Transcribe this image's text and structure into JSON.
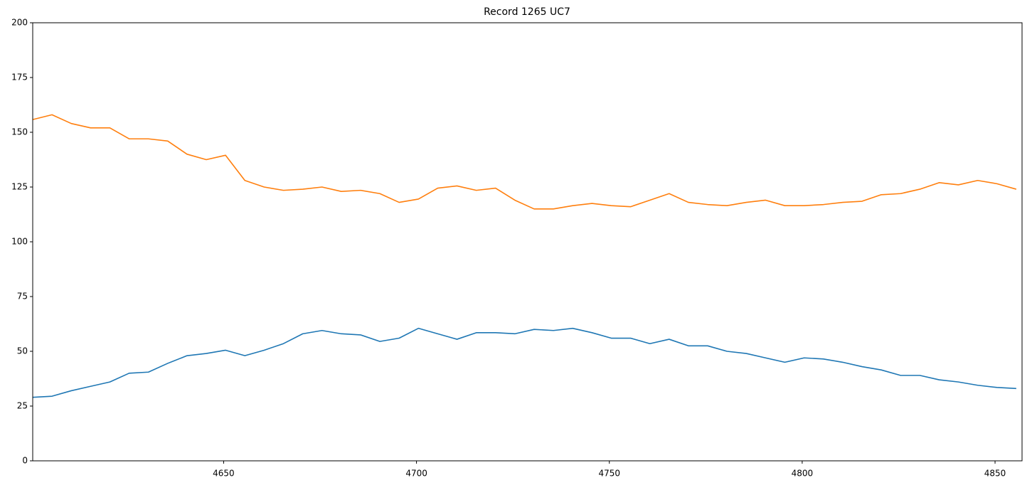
{
  "chart_data": {
    "type": "line",
    "title": "Record 1265 UC7",
    "x": [
      4600.5,
      4605.5,
      4610.5,
      4615.5,
      4620.5,
      4625.5,
      4630.5,
      4635.5,
      4640.5,
      4645.5,
      4650.5,
      4655.5,
      4660.5,
      4665.5,
      4670.5,
      4675.5,
      4680.5,
      4685.5,
      4690.5,
      4695.5,
      4700.5,
      4705.5,
      4710.5,
      4715.5,
      4720.5,
      4725.5,
      4730.5,
      4735.5,
      4740.5,
      4745.5,
      4750.5,
      4755.5,
      4760.5,
      4765.5,
      4770.5,
      4775.5,
      4780.5,
      4785.5,
      4790.5,
      4795.5,
      4800.5,
      4805.5,
      4810.5,
      4815.5,
      4820.5,
      4825.5,
      4830.5,
      4835.5,
      4840.5,
      4845.5,
      4850.5,
      4855.5
    ],
    "series": [
      {
        "color": "#1f77b4",
        "values": [
          29,
          29.5,
          32,
          34,
          36,
          40,
          40.5,
          44.5,
          48,
          49,
          50.5,
          48,
          50.5,
          53.5,
          58,
          59.5,
          58,
          57.5,
          54.5,
          56,
          60.5,
          58,
          55.5,
          58.5,
          58.5,
          58,
          60,
          59.5,
          60.5,
          58.5,
          56,
          56,
          53.5,
          55.5,
          52.5,
          52.5,
          50,
          49,
          47,
          45,
          47,
          46.5,
          45,
          43,
          41.5,
          39,
          39,
          37,
          36,
          34.5,
          33.5,
          33
        ]
      },
      {
        "color": "#ff7f0e",
        "values": [
          155.8,
          158,
          154,
          152,
          152,
          147,
          147,
          146,
          140,
          137.5,
          139.5,
          128,
          125,
          123.5,
          124,
          125,
          123,
          123.5,
          122,
          118,
          119.5,
          124.5,
          125.5,
          123.5,
          124.5,
          119,
          115,
          115,
          116.5,
          117.5,
          116.5,
          116,
          119,
          122,
          118,
          117,
          116.5,
          118,
          119,
          116.5,
          116.5,
          117,
          118,
          118.5,
          121.5,
          122,
          124,
          127,
          126,
          128,
          126.5,
          124
        ]
      }
    ],
    "xlim": [
      4600.5,
      4857
    ],
    "ylim": [
      0,
      200
    ],
    "xticks": [
      4650,
      4700,
      4750,
      4800,
      4850
    ],
    "yticks": [
      0,
      25,
      50,
      75,
      100,
      125,
      150,
      175,
      200
    ]
  }
}
